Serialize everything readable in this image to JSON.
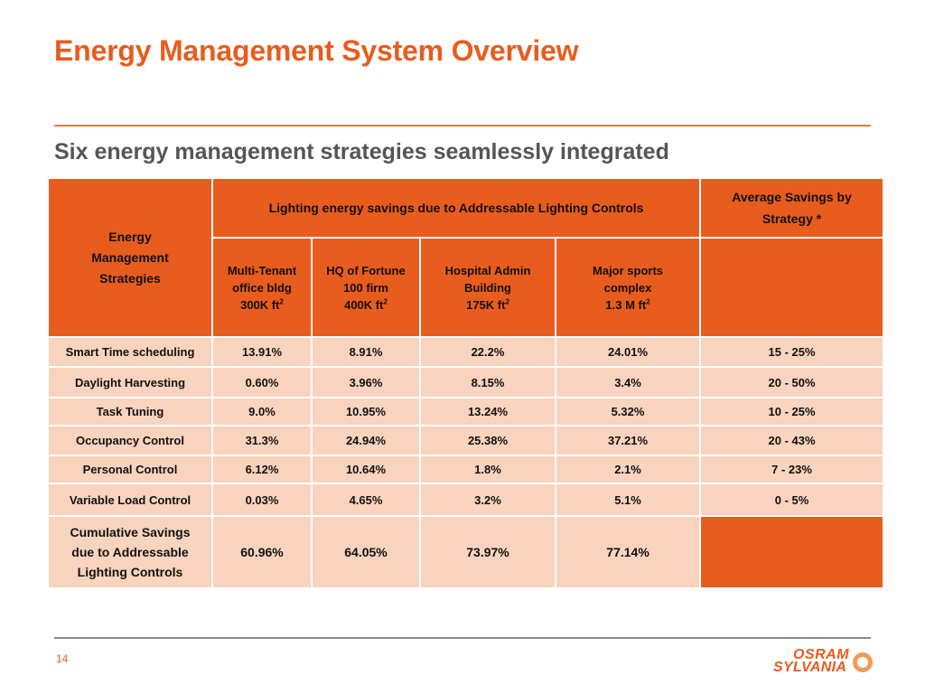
{
  "slide": {
    "title": "Energy Management System Overview",
    "subtitle": "Six energy management strategies seamlessly integrated",
    "page_number": "14"
  },
  "table": {
    "strategies_header": [
      "Energy",
      "Management",
      "Strategies"
    ],
    "savings_group_header": "Lighting energy savings due to Addressable Lighting Controls",
    "average_header": [
      "Average Savings by",
      "Strategy *"
    ],
    "sites": [
      {
        "line1": "Multi-Tenant",
        "line2": "office bldg",
        "line3": "300K ft",
        "sup": "2"
      },
      {
        "line1": "HQ of Fortune",
        "line2": "100  firm",
        "line3": "400K ft",
        "sup": "2"
      },
      {
        "line1": "Hospital Admin",
        "line2": "Building",
        "line3": "175K ft",
        "sup": "2"
      },
      {
        "line1": "Major sports",
        "line2": "complex",
        "line3": "1.3 M ft",
        "sup": "2"
      }
    ],
    "rows": [
      {
        "label": "Smart Time scheduling",
        "values": [
          "13.91%",
          "8.91%",
          "22.2%",
          "24.01%"
        ],
        "average": "15 - 25%"
      },
      {
        "label": "Daylight Harvesting",
        "values": [
          "0.60%",
          "3.96%",
          "8.15%",
          "3.4%"
        ],
        "average": "20 - 50%"
      },
      {
        "label": "Task Tuning",
        "values": [
          "9.0%",
          "10.95%",
          "13.24%",
          "5.32%"
        ],
        "average": "10 - 25%"
      },
      {
        "label": "Occupancy Control",
        "values": [
          "31.3%",
          "24.94%",
          "25.38%",
          "37.21%"
        ],
        "average": "20 - 43%"
      },
      {
        "label": "Personal Control",
        "values": [
          "6.12%",
          "10.64%",
          "1.8%",
          "2.1%"
        ],
        "average": "7 - 23%"
      },
      {
        "label": "Variable Load Control",
        "values": [
          "0.03%",
          "4.65%",
          "3.2%",
          "5.1%"
        ],
        "average": "0 - 5%"
      }
    ],
    "cumulative": {
      "label": [
        "Cumulative Savings",
        "due to Addressable",
        "Lighting Controls"
      ],
      "values": [
        "60.96%",
        "64.05%",
        "73.97%",
        "77.14%"
      ]
    }
  },
  "logo": {
    "top": "OSRAM",
    "bottom": "SYLVANIA"
  },
  "colors": {
    "accent": "#e85c1e",
    "cell": "#f8d3bd"
  }
}
